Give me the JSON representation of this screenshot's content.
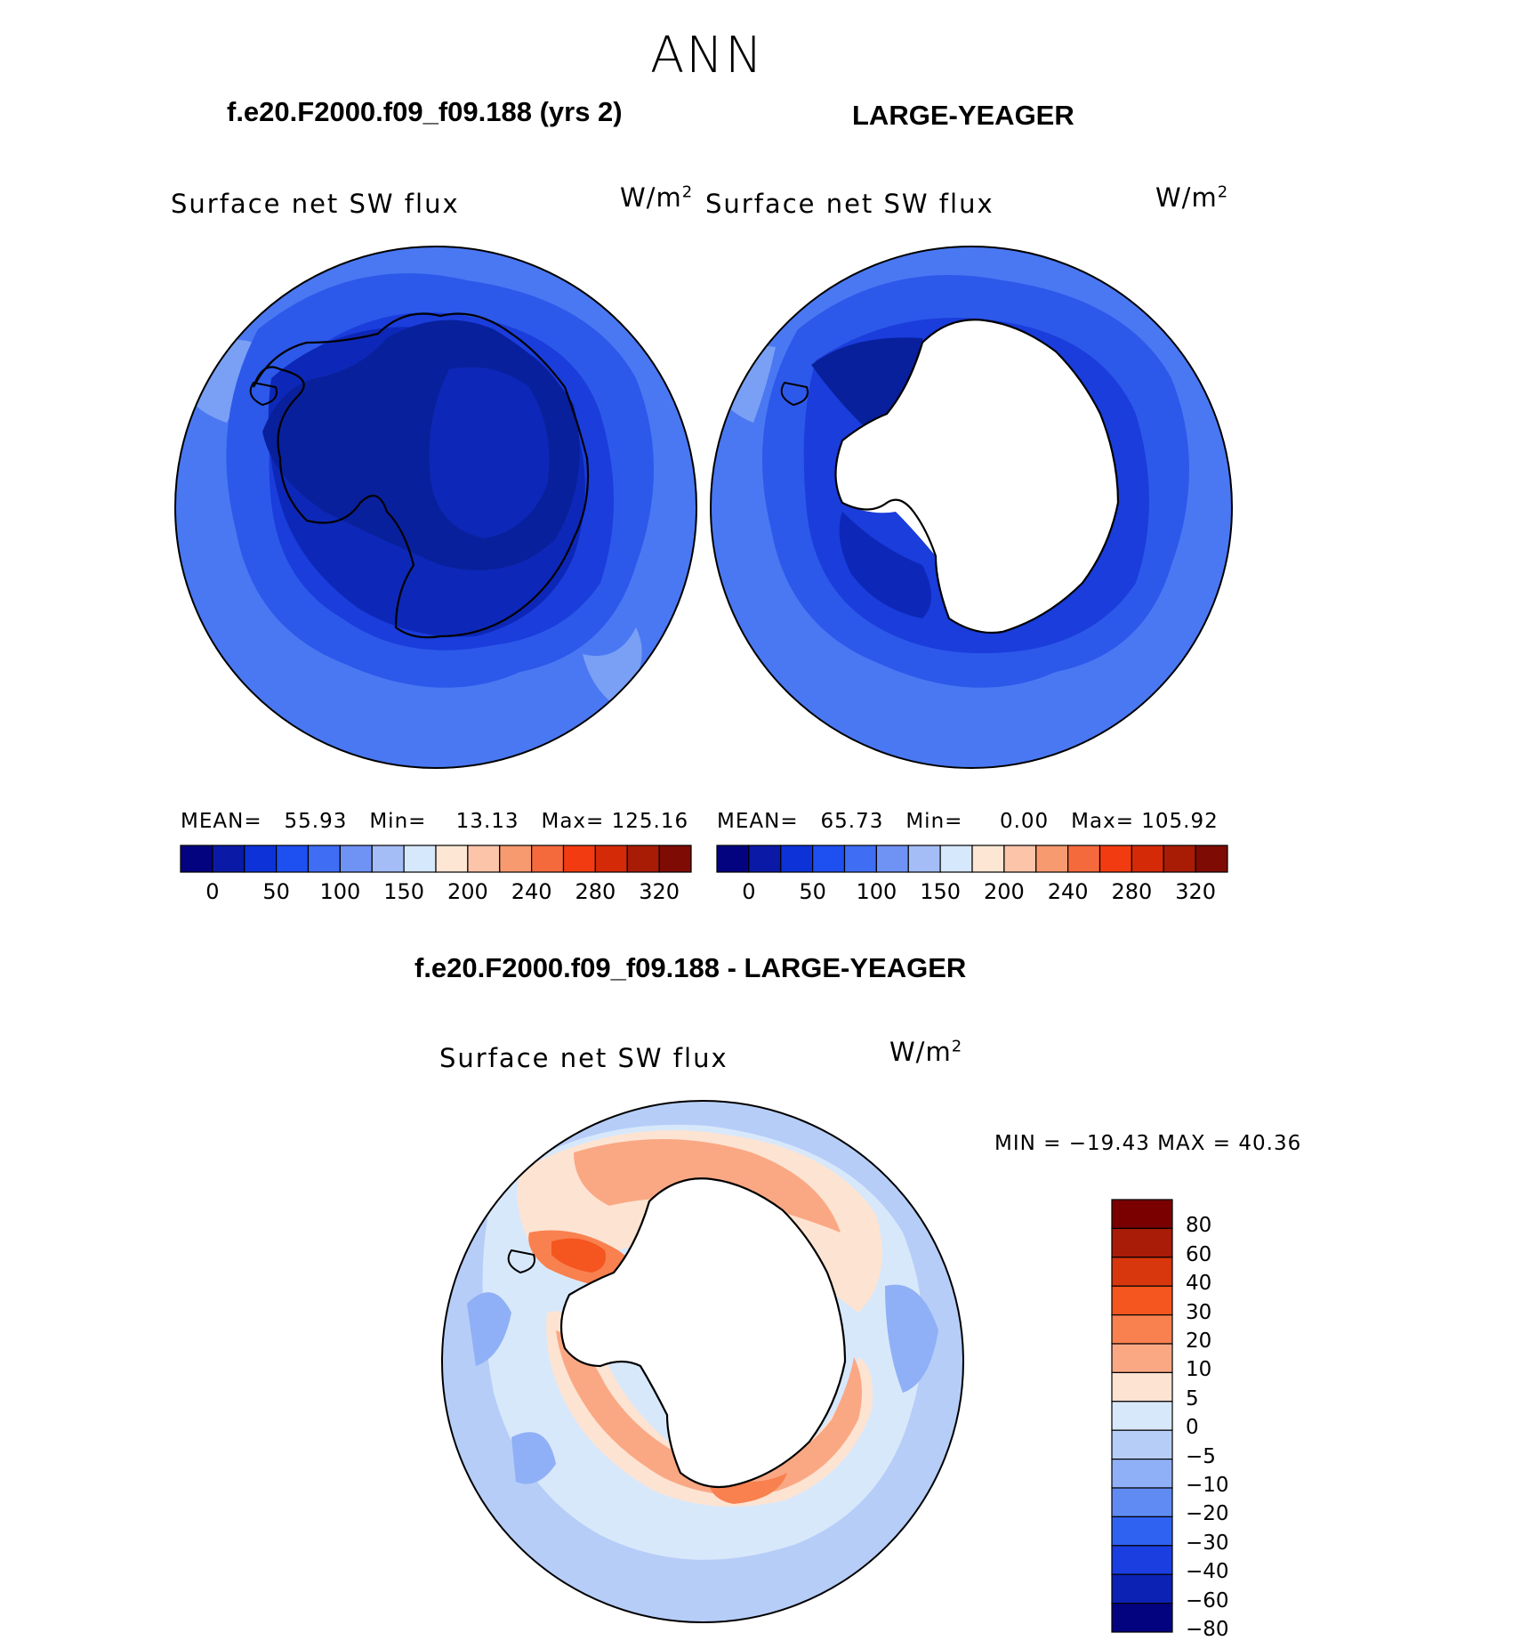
{
  "season": "ANN",
  "panels": [
    {
      "title": "f.e20.F2000.f09_f09.188 (yrs 2)",
      "variable": "Surface net SW flux",
      "units_base": "W/m",
      "units_exp": "2",
      "stats": {
        "mean_label": "MEAN=",
        "mean": "55.93",
        "min_label": "Min=",
        "min": "13.13",
        "max_label": "Max=",
        "max": "125.16"
      }
    },
    {
      "title": "LARGE-YEAGER",
      "variable": "Surface net SW flux",
      "units_base": "W/m",
      "units_exp": "2",
      "stats": {
        "mean_label": "MEAN=",
        "mean": "65.73",
        "min_label": "Min=",
        "min": "0.00",
        "max_label": "Max=",
        "max": "105.92"
      }
    }
  ],
  "diff_panel": {
    "title": "f.e20.F2000.f09_f09.188 - LARGE-YEAGER",
    "variable": "Surface net SW flux",
    "units_base": "W/m",
    "units_exp": "2",
    "minmax": "MIN = −19.43 MAX =   40.36"
  },
  "colorbar_horizontal": {
    "colors": [
      "#03037f",
      "#0a1aa6",
      "#0c32d8",
      "#1e4ff0",
      "#3f6ef5",
      "#6f92f5",
      "#a4bdf6",
      "#d6e8fb",
      "#fde6d4",
      "#fcc4a8",
      "#f89a6f",
      "#f56a3c",
      "#f23b10",
      "#d42a08",
      "#a81c06",
      "#7e0c04"
    ],
    "ticks": [
      "0",
      "50",
      "100",
      "150",
      "200",
      "240",
      "280",
      "320"
    ]
  },
  "colorbar_vertical": {
    "colors": [
      "#7a0000",
      "#a81c08",
      "#d8360c",
      "#f5551f",
      "#f8814f",
      "#faa884",
      "#fde3d2",
      "#d8e8fb",
      "#b6cdf8",
      "#8fb0f6",
      "#5f8bf3",
      "#2f62f0",
      "#1b3ee0",
      "#0c22b4",
      "#03037f"
    ],
    "labels": [
      "80",
      "60",
      "40",
      "30",
      "20",
      "10",
      "5",
      "0",
      "−5",
      "−10",
      "−20",
      "−30",
      "−40",
      "−60",
      "−80"
    ]
  },
  "map_colors": {
    "ocean_outer": "#4a78f3",
    "ocean_mid": "#2d59ea",
    "ocean_inner": "#1a3ddc",
    "ice_dark": "#0d28b8",
    "ice_darker": "#09209c",
    "light_patch": "#7aa0f5",
    "diff_neg5": "#d8e8fb",
    "diff_neg10": "#b6cdf8",
    "diff_neg20": "#8fb0f6",
    "diff_pos5": "#fde3d2",
    "diff_pos10": "#faa884",
    "diff_pos20": "#f8814f",
    "diff_pos30": "#f5551f",
    "continent": "#ffffff",
    "coastline": "#000000"
  }
}
